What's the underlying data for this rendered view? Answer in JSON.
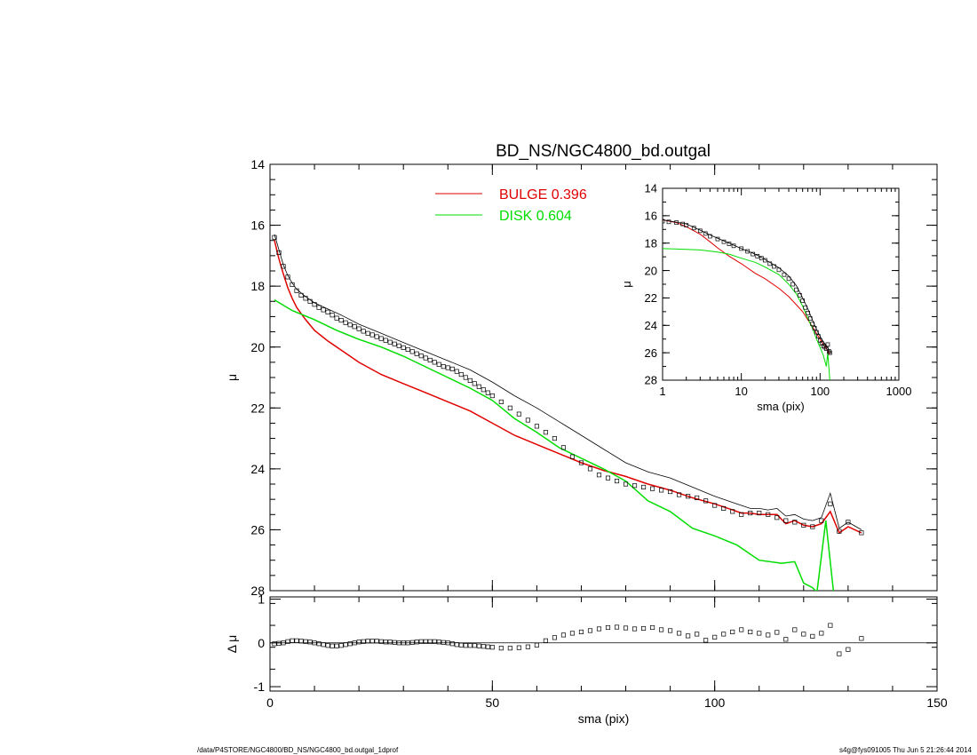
{
  "footer": {
    "path": "/data/P4STORE/NGC4800/BD_NS/NGC4800_bd.outgal_1dprof",
    "stamp": "s4g@fys091005  Thu Jun  5 21:26:44 2014"
  },
  "chart_data": [
    {
      "id": "main",
      "type": "line",
      "title": "BD_NS/NGC4800_bd.outgal",
      "xlabel": "",
      "ylabel": "μ",
      "xlim": [
        0,
        150
      ],
      "ylim": [
        28,
        14
      ],
      "yinverted": true,
      "xticks": [
        0,
        50,
        100,
        150
      ],
      "yticks": [
        14,
        16,
        18,
        20,
        22,
        24,
        26,
        28
      ],
      "xtick_labels": [
        "",
        "",
        "",
        ""
      ],
      "ytick_labels": [
        "14",
        "16",
        "18",
        "20",
        "22",
        "24",
        "26",
        "28"
      ],
      "legend": {
        "placement": "top-center",
        "entries": [
          {
            "label": "BULGE  0.396",
            "color": "#e00000"
          },
          {
            "label": "DISK  0.604",
            "color": "#00dd00"
          }
        ]
      },
      "series": [
        {
          "name": "BULGE  0.396",
          "color": "#e00000",
          "kind": "line",
          "x": [
            1,
            2,
            3,
            4,
            5,
            6,
            8,
            10,
            13,
            16,
            20,
            25,
            30,
            35,
            40,
            45,
            50,
            55,
            60,
            65,
            70,
            75,
            80,
            85,
            90,
            95,
            100,
            102,
            104,
            106,
            108,
            110,
            112,
            114,
            116,
            118,
            120,
            122,
            124,
            126,
            128,
            130,
            133
          ],
          "y": [
            16.5,
            17.1,
            17.6,
            18.05,
            18.4,
            18.7,
            19.1,
            19.45,
            19.8,
            20.1,
            20.5,
            20.9,
            21.2,
            21.5,
            21.8,
            22.1,
            22.5,
            22.9,
            23.2,
            23.5,
            23.8,
            24.05,
            24.25,
            24.5,
            24.7,
            24.95,
            25.15,
            25.25,
            25.35,
            25.45,
            25.45,
            25.5,
            25.5,
            25.5,
            25.8,
            25.7,
            25.85,
            25.9,
            25.8,
            25.4,
            26.1,
            25.9,
            26.1
          ]
        },
        {
          "name": "DISK  0.604",
          "color": "#00dd00",
          "kind": "line",
          "x": [
            1,
            5,
            10,
            15,
            20,
            25,
            30,
            35,
            40,
            45,
            50,
            55,
            60,
            65,
            70,
            75,
            80,
            85,
            90,
            95,
            100,
            105,
            110,
            115,
            118,
            120,
            122,
            123,
            125,
            127
          ],
          "y": [
            18.45,
            18.8,
            19.1,
            19.45,
            19.75,
            20.0,
            20.3,
            20.65,
            21.0,
            21.35,
            21.75,
            22.35,
            22.8,
            23.3,
            23.65,
            24.0,
            24.4,
            25.05,
            25.4,
            25.95,
            26.2,
            26.5,
            27.0,
            27.1,
            27.05,
            27.75,
            27.9,
            28.05,
            25.7,
            28.4
          ]
        },
        {
          "name": "",
          "color": "#000000",
          "kind": "line",
          "x": [
            1,
            2,
            3,
            4,
            5,
            6,
            8,
            10,
            13,
            16,
            20,
            25,
            30,
            35,
            40,
            45,
            50,
            55,
            60,
            65,
            70,
            75,
            80,
            85,
            90,
            95,
            100,
            102,
            104,
            106,
            108,
            110,
            112,
            114,
            116,
            118,
            120,
            122,
            124,
            126,
            128,
            130,
            133
          ],
          "y": [
            16.3,
            16.8,
            17.3,
            17.65,
            17.9,
            18.1,
            18.35,
            18.55,
            18.75,
            18.95,
            19.25,
            19.55,
            19.85,
            20.15,
            20.45,
            20.75,
            21.15,
            21.6,
            22.0,
            22.45,
            22.9,
            23.35,
            23.8,
            24.1,
            24.3,
            24.6,
            24.9,
            25.0,
            25.1,
            25.2,
            25.3,
            25.3,
            25.35,
            25.3,
            25.55,
            25.5,
            25.65,
            25.7,
            25.6,
            24.8,
            25.95,
            25.75,
            26.0
          ]
        },
        {
          "name": "",
          "color": "#000000",
          "kind": "markers",
          "x": [
            1,
            2,
            3,
            4,
            5,
            6,
            7,
            8,
            9,
            10,
            11,
            12,
            13,
            14,
            15,
            16,
            17,
            18,
            19,
            20,
            21,
            22,
            23,
            24,
            25,
            26,
            27,
            28,
            29,
            30,
            31,
            32,
            33,
            34,
            35,
            36,
            37,
            38,
            39,
            40,
            41,
            42,
            43,
            44,
            45,
            46,
            47,
            48,
            49,
            50,
            52,
            54,
            56,
            58,
            60,
            62,
            64,
            66,
            68,
            70,
            72,
            74,
            76,
            78,
            80,
            82,
            84,
            86,
            88,
            90,
            92,
            94,
            96,
            98,
            100,
            102,
            104,
            106,
            108,
            110,
            112,
            114,
            116,
            118,
            120,
            122,
            124,
            126,
            128,
            130,
            133
          ],
          "y": [
            16.4,
            16.9,
            17.35,
            17.7,
            17.95,
            18.15,
            18.3,
            18.4,
            18.5,
            18.6,
            18.7,
            18.78,
            18.85,
            18.95,
            19.05,
            19.12,
            19.2,
            19.27,
            19.33,
            19.4,
            19.48,
            19.55,
            19.6,
            19.66,
            19.72,
            19.78,
            19.84,
            19.9,
            19.96,
            20.02,
            20.08,
            20.15,
            20.22,
            20.29,
            20.36,
            20.43,
            20.5,
            20.57,
            20.64,
            20.68,
            20.72,
            20.8,
            20.9,
            21.0,
            21.1,
            21.2,
            21.3,
            21.4,
            21.5,
            21.6,
            21.8,
            22.0,
            22.2,
            22.4,
            22.6,
            22.8,
            23.0,
            23.3,
            23.6,
            23.8,
            24.0,
            24.2,
            24.3,
            24.4,
            24.5,
            24.55,
            24.6,
            24.65,
            24.7,
            24.75,
            24.85,
            24.9,
            24.95,
            25.05,
            25.2,
            25.3,
            25.4,
            25.5,
            25.45,
            25.45,
            25.5,
            25.6,
            25.7,
            25.75,
            25.85,
            25.9,
            25.7,
            25.15,
            26.05,
            25.75,
            26.1
          ]
        }
      ]
    },
    {
      "id": "residual",
      "type": "scatter",
      "xlabel": "sma (pix)",
      "ylabel": "Δ μ",
      "xlim": [
        0,
        150
      ],
      "ylim": [
        -1.1,
        1.05
      ],
      "xticks": [
        0,
        50,
        100,
        150
      ],
      "yticks": [
        -1,
        0,
        1
      ],
      "xtick_labels": [
        "0",
        "50",
        "100",
        "150"
      ],
      "ytick_labels": [
        "-1",
        "0",
        "1"
      ],
      "reference_line": 0,
      "series": [
        {
          "name": "",
          "color": "#000000",
          "kind": "markers",
          "x": [
            1,
            2,
            3,
            4,
            5,
            6,
            7,
            8,
            9,
            10,
            11,
            12,
            13,
            14,
            15,
            16,
            17,
            18,
            19,
            20,
            21,
            22,
            23,
            24,
            25,
            26,
            27,
            28,
            29,
            30,
            31,
            32,
            33,
            34,
            35,
            36,
            37,
            38,
            39,
            40,
            41,
            42,
            43,
            44,
            45,
            46,
            47,
            48,
            49,
            50,
            52,
            54,
            56,
            58,
            60,
            62,
            64,
            66,
            68,
            70,
            72,
            74,
            76,
            78,
            80,
            82,
            84,
            86,
            88,
            90,
            92,
            94,
            96,
            98,
            100,
            102,
            104,
            106,
            108,
            110,
            112,
            114,
            116,
            118,
            120,
            122,
            124,
            126,
            128,
            130,
            133
          ],
          "y": [
            -0.02,
            -0.01,
            0.0,
            0.03,
            0.05,
            0.05,
            0.04,
            0.03,
            0.02,
            0.0,
            -0.02,
            -0.04,
            -0.06,
            -0.07,
            -0.07,
            -0.06,
            -0.04,
            -0.02,
            0.0,
            0.02,
            0.03,
            0.04,
            0.04,
            0.04,
            0.03,
            0.02,
            0.02,
            0.01,
            0.0,
            0.0,
            0.0,
            0.01,
            0.02,
            0.03,
            0.03,
            0.03,
            0.03,
            0.02,
            0.01,
            0.0,
            -0.02,
            -0.04,
            -0.05,
            -0.06,
            -0.06,
            -0.06,
            -0.07,
            -0.08,
            -0.09,
            -0.1,
            -0.12,
            -0.12,
            -0.11,
            -0.09,
            -0.05,
            0.05,
            0.12,
            0.18,
            0.22,
            0.25,
            0.28,
            0.32,
            0.35,
            0.36,
            0.34,
            0.32,
            0.33,
            0.35,
            0.3,
            0.28,
            0.22,
            0.16,
            0.2,
            0.06,
            0.13,
            0.2,
            0.25,
            0.3,
            0.25,
            0.22,
            0.18,
            0.24,
            0.08,
            0.3,
            0.2,
            0.15,
            0.22,
            0.4,
            -0.25,
            -0.15,
            0.1
          ]
        }
      ]
    },
    {
      "id": "inset",
      "type": "line",
      "xlabel": "sma (pix)",
      "ylabel": "μ",
      "xscale": "log",
      "xlim": [
        1,
        1000
      ],
      "ylim": [
        28,
        14
      ],
      "yinverted": true,
      "xticks": [
        1,
        10,
        100,
        1000
      ],
      "yticks": [
        14,
        16,
        18,
        20,
        22,
        24,
        26,
        28
      ],
      "xtick_labels": [
        "1",
        "10",
        "100",
        "1000"
      ],
      "ytick_labels": [
        "14",
        "16",
        "18",
        "20",
        "22",
        "24",
        "26",
        "28"
      ],
      "series": [
        {
          "name": "",
          "color": "#e00000",
          "kind": "line",
          "x": [
            1,
            1.5,
            2,
            3,
            4,
            5,
            7,
            10,
            15,
            20,
            30,
            40,
            50,
            60,
            70,
            80,
            90,
            100,
            110,
            120,
            133
          ],
          "y": [
            16.3,
            16.5,
            16.8,
            17.35,
            17.9,
            18.35,
            18.95,
            19.5,
            20.2,
            20.6,
            21.3,
            21.9,
            22.5,
            23.0,
            23.6,
            24.1,
            24.6,
            25.0,
            25.4,
            25.7,
            26.1
          ]
        },
        {
          "name": "",
          "color": "#00dd00",
          "kind": "line",
          "x": [
            1,
            2,
            3,
            5,
            7,
            10,
            15,
            20,
            30,
            40,
            50,
            60,
            70,
            80,
            90,
            100,
            110,
            120,
            125,
            133
          ],
          "y": [
            18.4,
            18.45,
            18.5,
            18.65,
            18.8,
            19.1,
            19.4,
            19.75,
            20.3,
            21.0,
            21.7,
            22.6,
            23.5,
            24.2,
            25.0,
            25.6,
            26.2,
            27.0,
            26.0,
            28.0
          ]
        },
        {
          "name": "",
          "color": "#000000",
          "kind": "line",
          "x": [
            1,
            2,
            3,
            4,
            5,
            7,
            10,
            15,
            20,
            30,
            40,
            50,
            60,
            70,
            80,
            90,
            100,
            110,
            120,
            130,
            133
          ],
          "y": [
            16.3,
            16.6,
            17.05,
            17.4,
            17.65,
            18.0,
            18.4,
            18.8,
            19.2,
            19.8,
            20.4,
            21.1,
            22.0,
            22.8,
            23.6,
            24.3,
            24.8,
            25.2,
            25.5,
            25.8,
            26.0
          ]
        },
        {
          "name": "",
          "color": "#000000",
          "kind": "markers",
          "x": [
            1,
            1.2,
            1.5,
            1.8,
            2,
            2.5,
            3,
            3.5,
            4,
            5,
            6,
            7,
            8,
            10,
            12,
            14,
            16,
            18,
            20,
            23,
            26,
            30,
            35,
            40,
            45,
            50,
            55,
            60,
            65,
            70,
            75,
            80,
            85,
            90,
            95,
            100,
            105,
            110,
            115,
            120,
            125,
            130,
            133
          ],
          "y": [
            16.4,
            16.45,
            16.5,
            16.6,
            16.7,
            16.9,
            17.1,
            17.3,
            17.5,
            17.7,
            17.9,
            18.05,
            18.2,
            18.4,
            18.6,
            18.8,
            18.95,
            19.1,
            19.25,
            19.5,
            19.7,
            19.95,
            20.3,
            20.6,
            21.0,
            21.4,
            21.8,
            22.2,
            22.7,
            23.1,
            23.5,
            23.9,
            24.2,
            24.5,
            24.8,
            25.1,
            25.3,
            25.5,
            25.6,
            25.7,
            25.4,
            25.9,
            26.0
          ]
        }
      ]
    }
  ]
}
